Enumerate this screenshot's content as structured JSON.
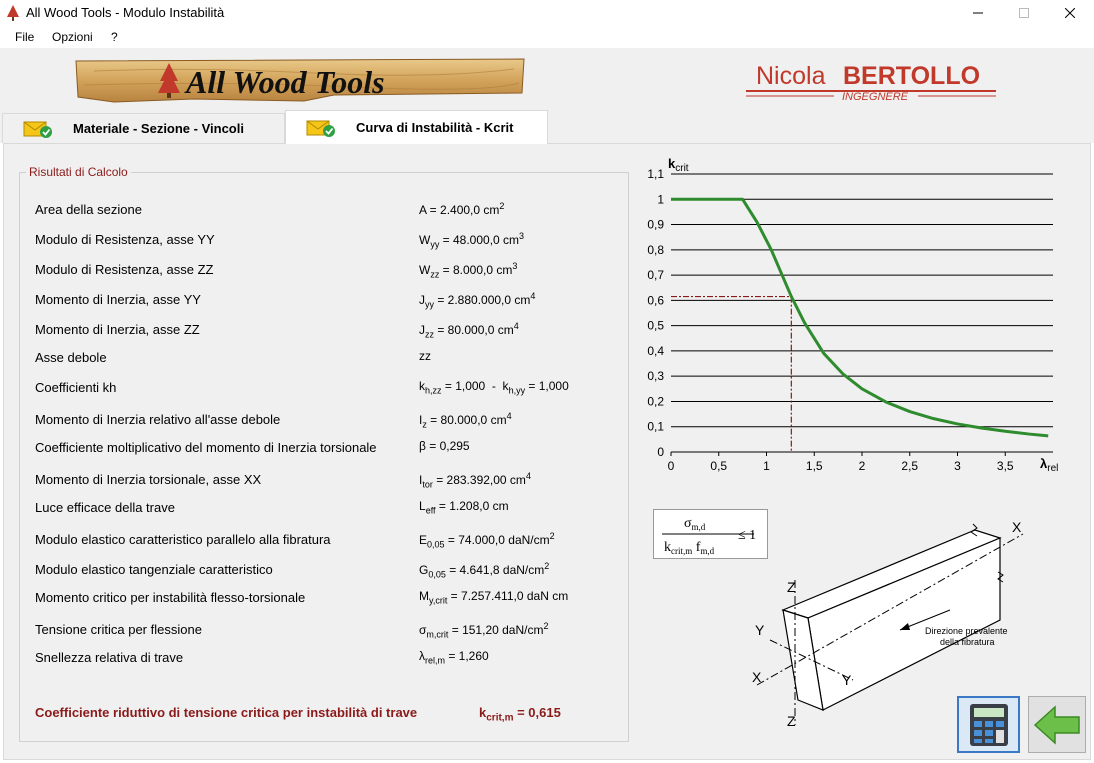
{
  "window": {
    "title": "All Wood Tools - Modulo Instabilità"
  },
  "menu": [
    "File",
    "Opzioni",
    "?"
  ],
  "logos": {
    "left_text": "All Wood Tools",
    "right_name_1": "Nicola",
    "right_name_2": "BERTOLLO",
    "right_sub": "INGEGNERE"
  },
  "tabs": [
    {
      "label": "Materiale - Sezione - Vincoli",
      "active": false
    },
    {
      "label": "Curva di Instabilità - Kcrit",
      "active": true
    }
  ],
  "results": {
    "legend": "Risultati di Calcolo",
    "rows": [
      {
        "label": "Area della sezione",
        "value_html": "A = 2.400,0 cm<sup>2</sup>"
      },
      {
        "label": "Modulo di Resistenza, asse YY",
        "value_html": "W<sub>yy</sub> = 48.000,0 cm<sup>3</sup>"
      },
      {
        "label": "Modulo di Resistenza, asse ZZ",
        "value_html": "W<sub>zz</sub> = 8.000,0 cm<sup>3</sup>"
      },
      {
        "label": "Momento di Inerzia, asse YY",
        "value_html": "J<sub>yy</sub> = 2.880.000,0 cm<sup>4</sup>"
      },
      {
        "label": "Momento di Inerzia, asse ZZ",
        "value_html": "J<sub>zz</sub> = 80.000,0 cm<sup>4</sup>"
      },
      {
        "label": "Asse debole",
        "value_html": "zz"
      },
      {
        "label": "Coefficienti kh",
        "value_html": "k<sub>h,zz</sub> = 1,000 &nbsp;- &nbsp;k<sub>h,yy</sub> = 1,000"
      },
      {
        "label": "Momento di Inerzia relativo all'asse debole",
        "value_html": "I<sub>z</sub> = 80.000,0 cm<sup>4</sup>"
      },
      {
        "label": "Coefficiente moltiplicativo del momento di Inerzia torsionale",
        "value_html": "β = 0,295"
      },
      {
        "label": "Momento di Inerzia torsionale, asse XX",
        "value_html": "I<sub>tor</sub> = 283.392,00 cm<sup>4</sup>"
      },
      {
        "label": "Luce efficace della trave",
        "value_html": "L<sub>eff</sub> = 1.208,0 cm"
      },
      {
        "label": "Modulo elastico caratteristico parallelo alla fibratura",
        "value_html": "E<sub>0,05</sub> = 74.000,0 daN/cm<sup>2</sup>"
      },
      {
        "label": "Modulo elastico tangenziale caratteristico",
        "value_html": "G<sub>0,05</sub> = 4.641,8 daN/cm<sup>2</sup>"
      },
      {
        "label": "Momento critico per instabilità flesso-torsionale",
        "value_html": "M<sub>y,crit</sub> = 7.257.411,0 daN cm"
      },
      {
        "label": "Tensione critica per flessione",
        "value_html": "σ<sub>m,crit</sub> = 151,20 daN/cm<sup>2</sup>"
      },
      {
        "label": "Snellezza relativa di trave",
        "value_html": "λ<sub>rel,m</sub> = 1,260"
      }
    ],
    "final_label": "Coefficiente riduttivo di tensione critica per instabilità di trave",
    "final_value_html": "k<sub>crit,m</sub> = 0,615"
  },
  "chart_data": {
    "type": "line",
    "ylabel": "kcrit",
    "xlabel": "λrel",
    "xlim": [
      0,
      4
    ],
    "ylim": [
      0,
      1.1
    ],
    "xticks": [
      "0",
      "0,5",
      "1",
      "1,5",
      "2",
      "2,5",
      "3",
      "3,5"
    ],
    "yticks": [
      "0",
      "0,1",
      "0,2",
      "0,3",
      "0,4",
      "0,5",
      "0,6",
      "0,7",
      "0,8",
      "0,9",
      "1",
      "1,1"
    ],
    "grid": "horizontal",
    "series": [
      {
        "color": "#2e8b2e",
        "x": [
          0,
          0.75,
          0.9,
          1.05,
          1.26,
          1.4,
          1.6,
          1.8,
          2.0,
          2.25,
          2.5,
          2.75,
          3.0,
          3.25,
          3.5,
          3.75,
          3.95
        ],
        "y": [
          1.0,
          1.0,
          0.91,
          0.8,
          0.615,
          0.51,
          0.39,
          0.309,
          0.25,
          0.198,
          0.16,
          0.132,
          0.111,
          0.095,
          0.082,
          0.071,
          0.064
        ]
      }
    ],
    "marker_point": {
      "x": 1.26,
      "y": 0.615,
      "color": "#8b1a1a"
    }
  },
  "formula": {
    "numerator": "σm,d",
    "denominator": "kcrit,m fm,d",
    "relation": "≤ 1"
  },
  "beam_diagram": {
    "label_x": "X",
    "label_y": "Y",
    "label_z": "Z",
    "caption_1": "Direzione prevalente",
    "caption_2": "della fibratura"
  },
  "buttons": {
    "calc_icon": "calculator-icon",
    "back_icon": "back-arrow-icon"
  }
}
